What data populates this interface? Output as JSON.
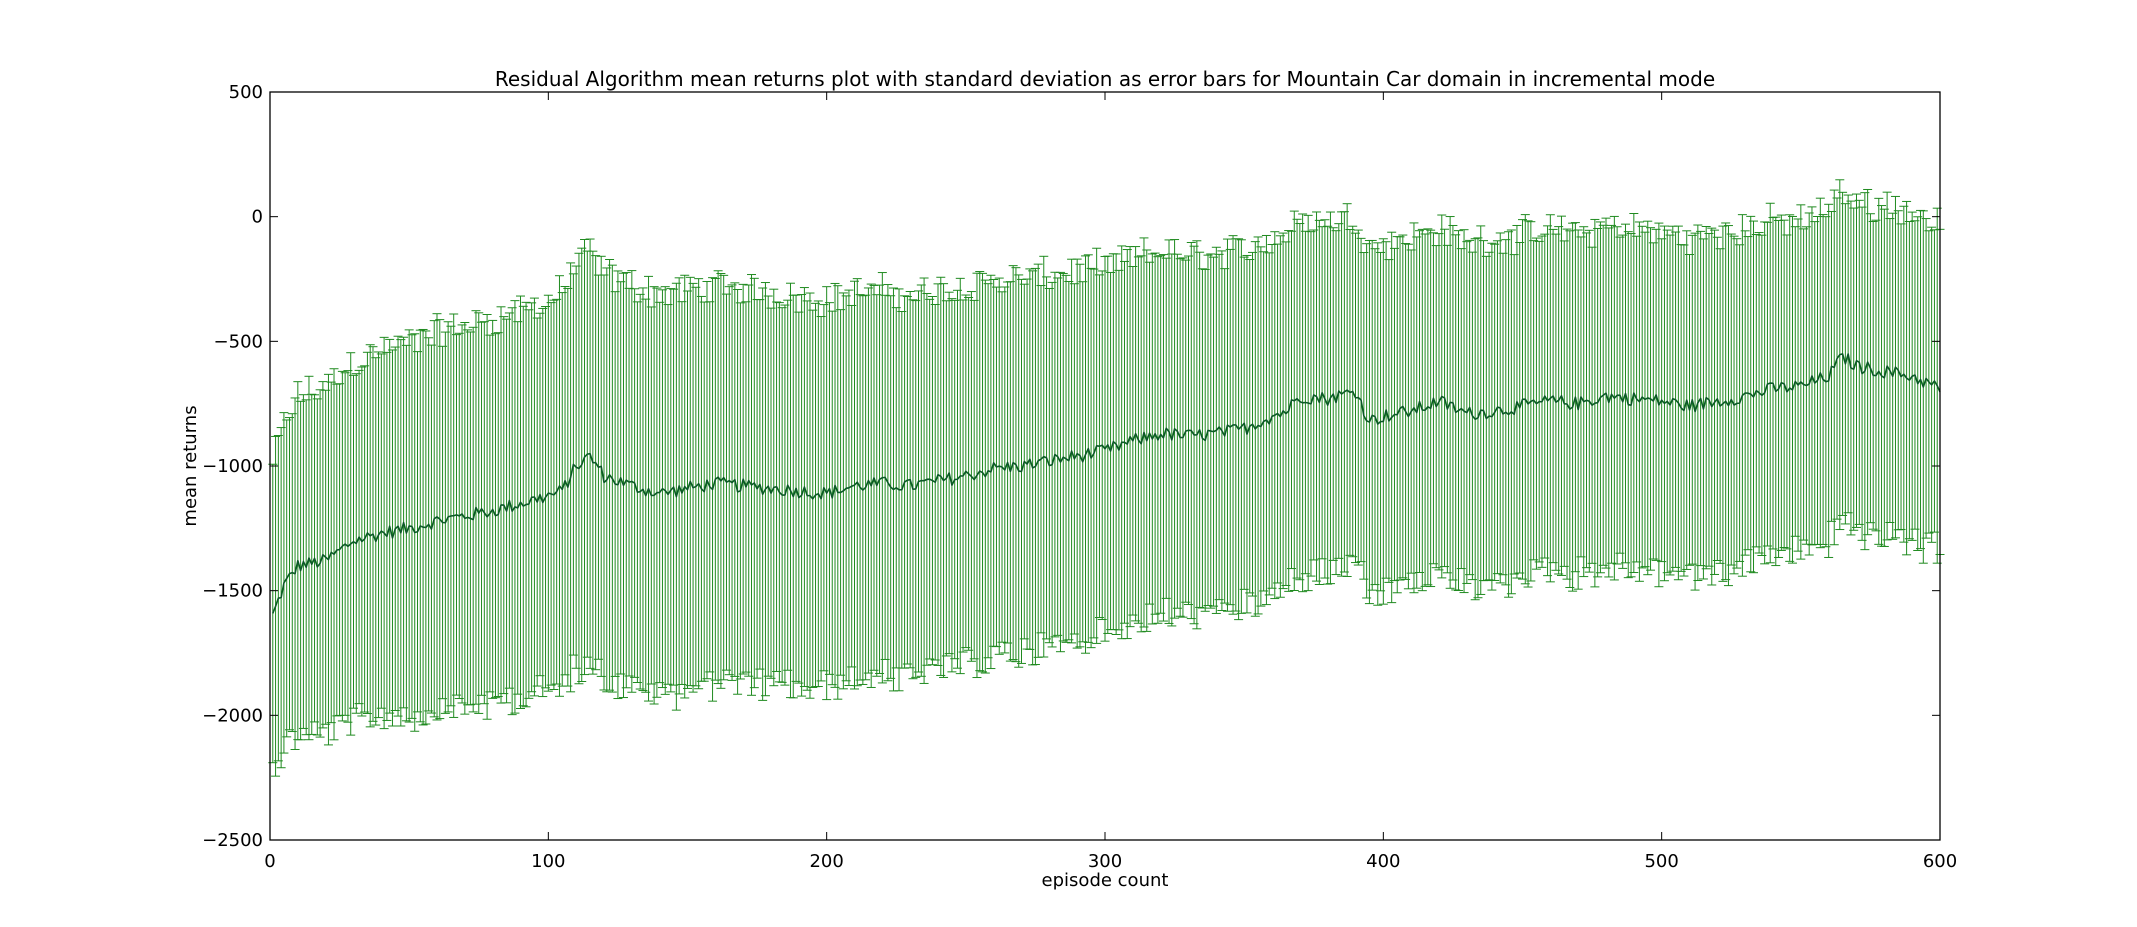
{
  "chart_data": {
    "type": "line",
    "title": "Residual Algorithm mean returns plot with standard deviation as error bars for Mountain Car domain in incremental mode",
    "xlabel": "episode count",
    "ylabel": "mean returns",
    "xlim": [
      0,
      600
    ],
    "ylim": [
      -2500,
      500
    ],
    "x_ticks": [
      0,
      100,
      200,
      300,
      400,
      500,
      600
    ],
    "x_tick_labels": [
      "0",
      "100",
      "200",
      "300",
      "400",
      "500",
      "600"
    ],
    "y_ticks": [
      500,
      0,
      -500,
      -1000,
      -1500,
      -2000,
      -2500
    ],
    "y_tick_labels": [
      "500",
      "0",
      "−500",
      "−1000",
      "−1500",
      "−2000",
      "−2500"
    ],
    "grid": false,
    "legend": "none",
    "episodes": {
      "start": 1,
      "end": 600,
      "step": 1
    },
    "series": [
      {
        "mean_keypoints": {
          "x": [
            1,
            5,
            10,
            20,
            30,
            40,
            50,
            60,
            70,
            80,
            90,
            100,
            105,
            110,
            115,
            120,
            130,
            140,
            150,
            160,
            170,
            180,
            190,
            200,
            210,
            220,
            230,
            240,
            250,
            260,
            270,
            280,
            290,
            300,
            310,
            320,
            330,
            340,
            350,
            360,
            365,
            370,
            380,
            390,
            395,
            400,
            410,
            420,
            430,
            440,
            450,
            460,
            470,
            480,
            490,
            500,
            510,
            520,
            530,
            540,
            550,
            560,
            565,
            570,
            580,
            590,
            600
          ],
          "y": [
            -1600,
            -1480,
            -1400,
            -1380,
            -1300,
            -1270,
            -1250,
            -1220,
            -1200,
            -1180,
            -1150,
            -1120,
            -1100,
            -1000,
            -960,
            -1040,
            -1080,
            -1110,
            -1090,
            -1070,
            -1080,
            -1090,
            -1100,
            -1110,
            -1080,
            -1070,
            -1080,
            -1060,
            -1040,
            -1010,
            -1000,
            -980,
            -960,
            -940,
            -900,
            -870,
            -880,
            -870,
            -850,
            -800,
            -780,
            -720,
            -730,
            -700,
            -820,
            -800,
            -780,
            -740,
            -790,
            -780,
            -760,
            -740,
            -750,
            -720,
            -730,
            -740,
            -760,
            -740,
            -720,
            -690,
            -680,
            -640,
            -560,
            -600,
            -620,
            -640,
            -690
          ]
        },
        "std_keypoints": {
          "x": [
            1,
            10,
            30,
            60,
            100,
            110,
            150,
            200,
            300,
            400,
            500,
            600
          ],
          "y": [
            620,
            680,
            720,
            760,
            780,
            820,
            800,
            780,
            740,
            700,
            680,
            660
          ]
        },
        "mean_color": "#0b5a26",
        "errorbar_color": "#1f8a1f"
      }
    ]
  },
  "colors": {
    "mean_line": "#0b5a26",
    "error_bars": "#1f8a1f",
    "axes": "#000000",
    "background": "#ffffff"
  }
}
